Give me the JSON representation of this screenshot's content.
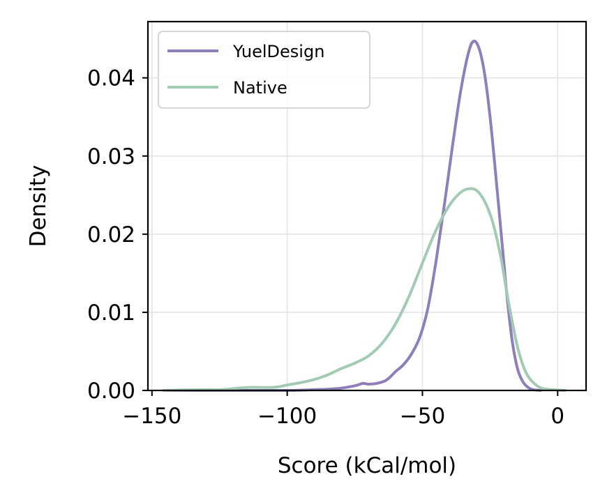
{
  "chart_data": {
    "type": "line",
    "subtype": "density",
    "xlabel": "Score (kCal/mol)",
    "ylabel": "Density",
    "xlim": [
      -151.5,
      10.5
    ],
    "ylim": [
      0,
      0.0472
    ],
    "xticks": [
      -150,
      -100,
      -50,
      0
    ],
    "xtick_labels": [
      "−150",
      "−100",
      "−50",
      "0"
    ],
    "yticks": [
      0,
      0.01,
      0.02,
      0.03,
      0.04
    ],
    "ytick_labels": [
      "0.00",
      "0.01",
      "0.02",
      "0.03",
      "0.04"
    ],
    "grid": true,
    "legend_position": "upper left",
    "series": [
      {
        "name": "YuelDesign",
        "color": "#8e7fbb",
        "points": [
          [
            -146,
            0.0
          ],
          [
            -120,
            0.0
          ],
          [
            -100,
            0.0
          ],
          [
            -90,
            0.0001
          ],
          [
            -85,
            0.00015
          ],
          [
            -80,
            0.0003
          ],
          [
            -75,
            0.0006
          ],
          [
            -72,
            0.0009
          ],
          [
            -70,
            0.0008
          ],
          [
            -67,
            0.0009
          ],
          [
            -64,
            0.0012
          ],
          [
            -62,
            0.0017
          ],
          [
            -60,
            0.0024
          ],
          [
            -57,
            0.0033
          ],
          [
            -54,
            0.0047
          ],
          [
            -51,
            0.0068
          ],
          [
            -48,
            0.0105
          ],
          [
            -45,
            0.0165
          ],
          [
            -42,
            0.0235
          ],
          [
            -39,
            0.031
          ],
          [
            -36,
            0.038
          ],
          [
            -33,
            0.0432
          ],
          [
            -31,
            0.0447
          ],
          [
            -29,
            0.0437
          ],
          [
            -27,
            0.0405
          ],
          [
            -25,
            0.035
          ],
          [
            -23,
            0.028
          ],
          [
            -21,
            0.0205
          ],
          [
            -19,
            0.013
          ],
          [
            -17,
            0.0068
          ],
          [
            -15,
            0.003
          ],
          [
            -13,
            0.0012
          ],
          [
            -11,
            0.0004
          ],
          [
            -9,
            0.0001
          ],
          [
            -6,
            0.0
          ]
        ]
      },
      {
        "name": "Native",
        "color": "#a1cbb3",
        "points": [
          [
            -146,
            0.0
          ],
          [
            -140,
            5e-05
          ],
          [
            -130,
            0.0001
          ],
          [
            -124,
            0.0001
          ],
          [
            -118,
            0.0003
          ],
          [
            -113,
            0.0004
          ],
          [
            -105,
            0.0004
          ],
          [
            -100,
            0.0007
          ],
          [
            -95,
            0.001
          ],
          [
            -90,
            0.0014
          ],
          [
            -85,
            0.002
          ],
          [
            -80,
            0.0028
          ],
          [
            -75,
            0.0035
          ],
          [
            -70,
            0.0044
          ],
          [
            -65,
            0.006
          ],
          [
            -60,
            0.0085
          ],
          [
            -55,
            0.012
          ],
          [
            -50,
            0.0163
          ],
          [
            -45,
            0.0205
          ],
          [
            -40,
            0.0237
          ],
          [
            -36,
            0.0253
          ],
          [
            -33,
            0.0258
          ],
          [
            -30,
            0.0256
          ],
          [
            -27,
            0.0242
          ],
          [
            -24,
            0.0215
          ],
          [
            -21,
            0.017
          ],
          [
            -18,
            0.011
          ],
          [
            -15,
            0.0058
          ],
          [
            -12,
            0.0025
          ],
          [
            -9,
            0.001
          ],
          [
            -6,
            0.0003
          ],
          [
            -2,
            0.0001
          ],
          [
            3,
            0.0
          ]
        ]
      }
    ]
  }
}
